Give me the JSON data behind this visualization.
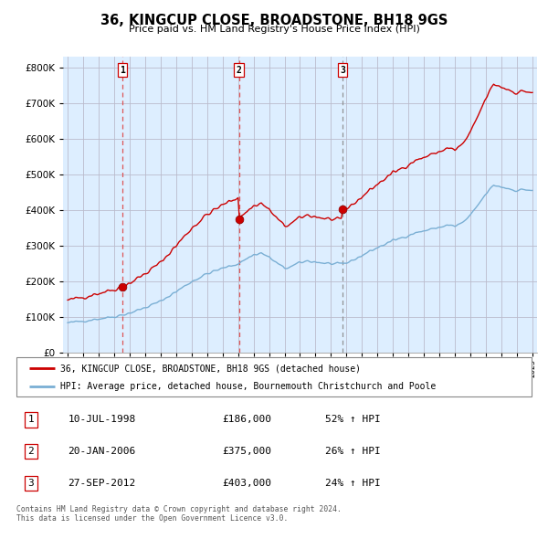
{
  "title": "36, KINGCUP CLOSE, BROADSTONE, BH18 9GS",
  "subtitle": "Price paid vs. HM Land Registry's House Price Index (HPI)",
  "legend_property": "36, KINGCUP CLOSE, BROADSTONE, BH18 9GS (detached house)",
  "legend_hpi": "HPI: Average price, detached house, Bournemouth Christchurch and Poole",
  "footer1": "Contains HM Land Registry data © Crown copyright and database right 2024.",
  "footer2": "This data is licensed under the Open Government Licence v3.0.",
  "transactions": [
    {
      "label": "1",
      "date": "10-JUL-1998",
      "price": 186000,
      "hpi_pct": "52% ↑ HPI",
      "year": 1998.54,
      "vline_color": "#dd4444",
      "vline_style": "--"
    },
    {
      "label": "2",
      "date": "20-JAN-2006",
      "price": 375000,
      "hpi_pct": "26% ↑ HPI",
      "year": 2006.05,
      "vline_color": "#dd4444",
      "vline_style": "--"
    },
    {
      "label": "3",
      "date": "27-SEP-2012",
      "price": 403000,
      "hpi_pct": "24% ↑ HPI",
      "year": 2012.74,
      "vline_color": "#888888",
      "vline_style": "--"
    }
  ],
  "ylim": [
    0,
    830000
  ],
  "yticks": [
    0,
    100000,
    200000,
    300000,
    400000,
    500000,
    600000,
    700000,
    800000
  ],
  "xlim_start": 1994.7,
  "xlim_end": 2025.3,
  "property_color": "#cc0000",
  "hpi_color": "#7aafd4",
  "plot_bg_color": "#ddeeff",
  "background_color": "#ffffff",
  "grid_color": "#bbbbcc"
}
